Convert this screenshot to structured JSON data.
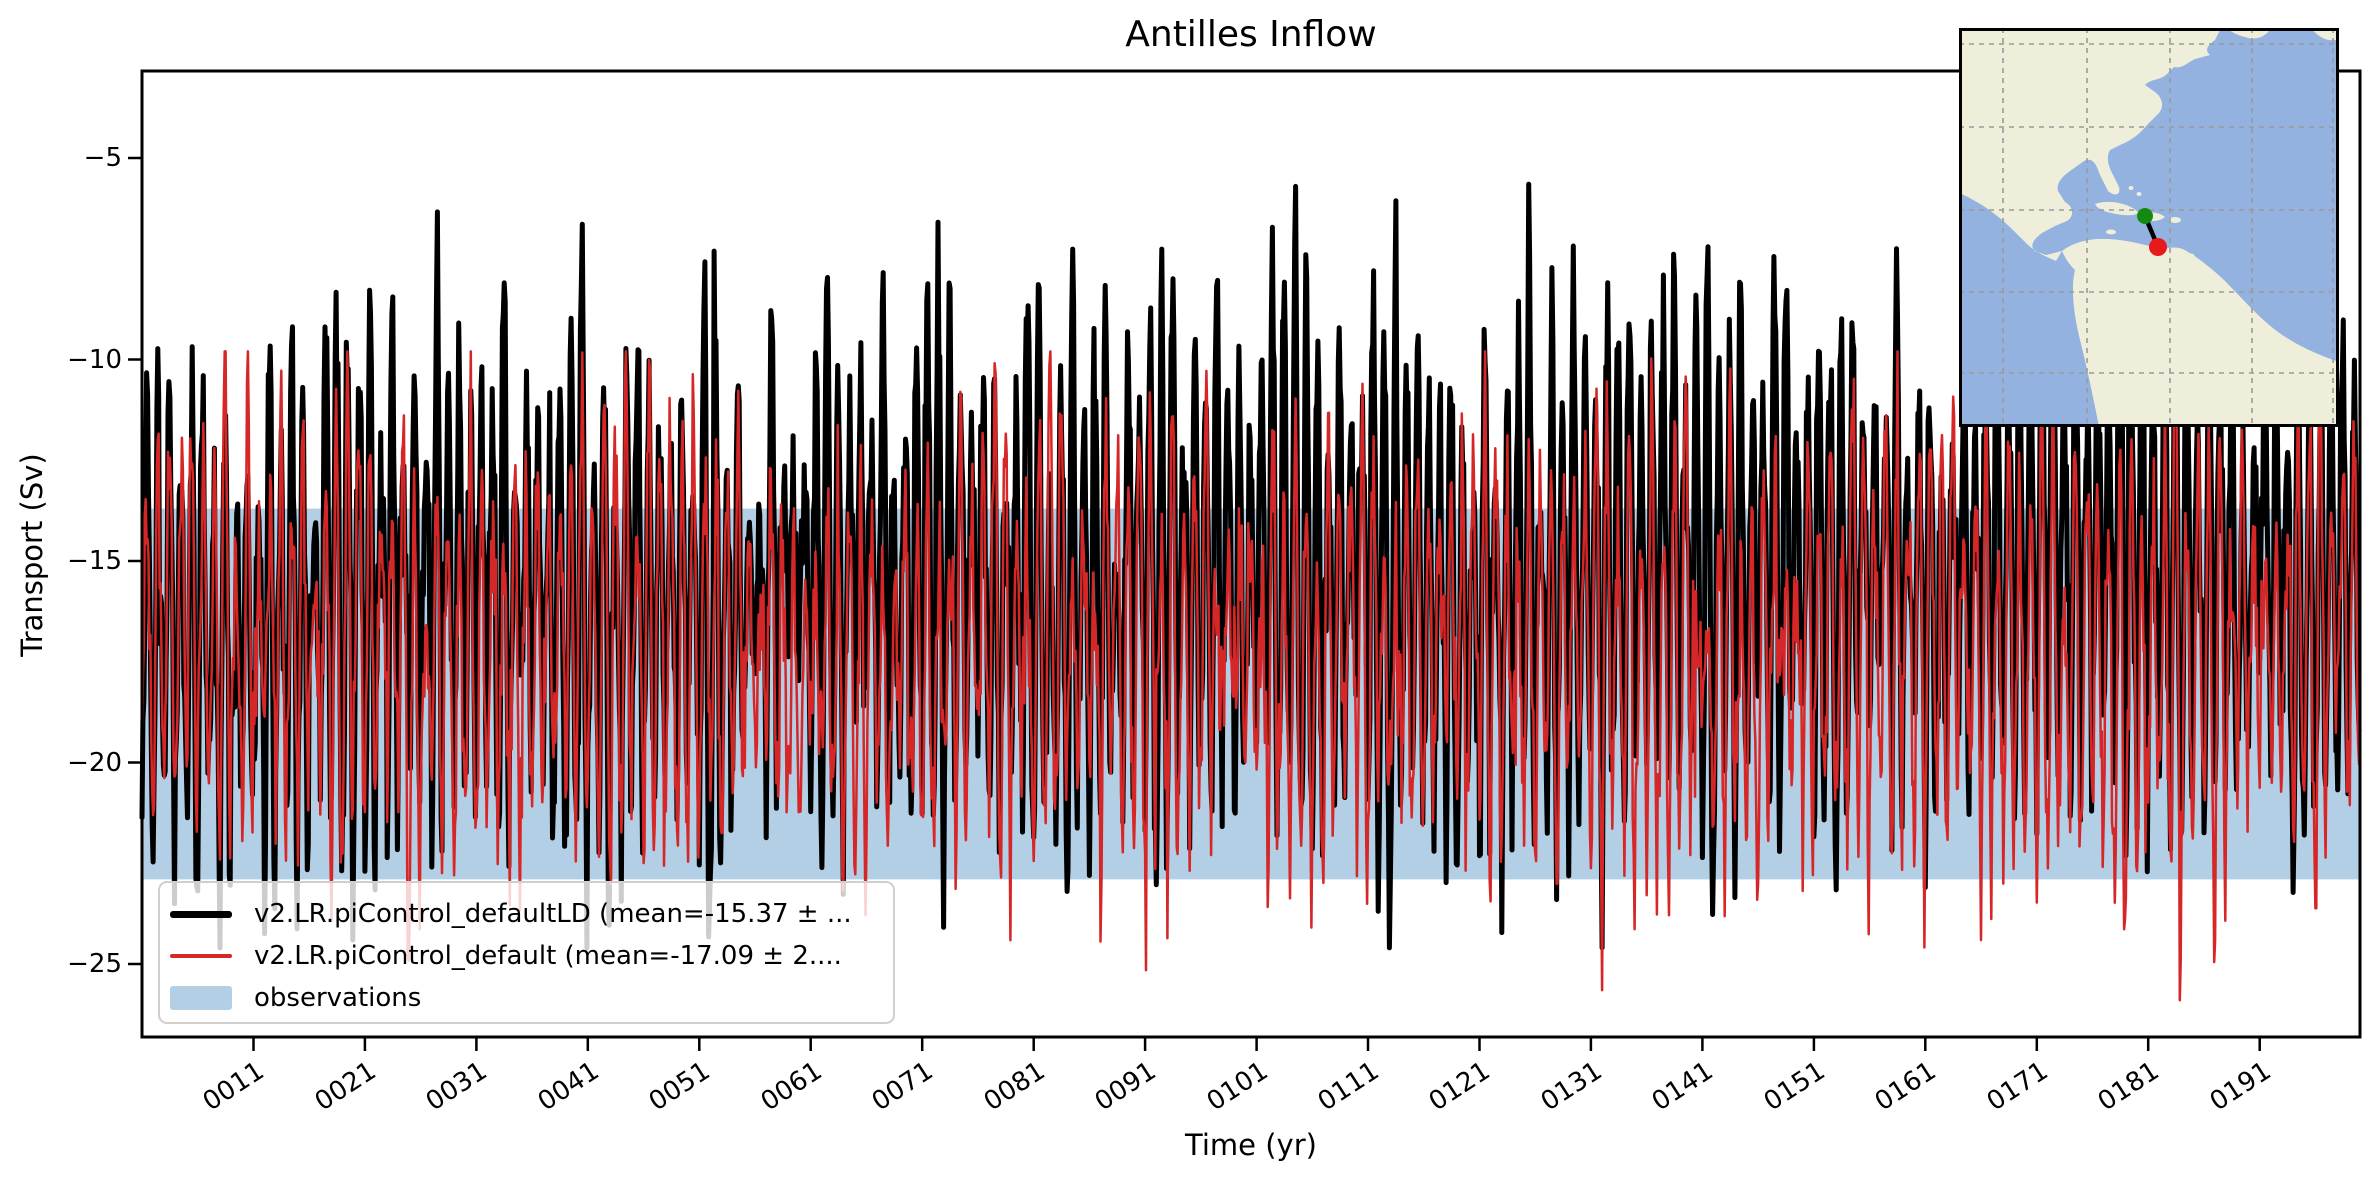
{
  "figure": {
    "background": "#ffffff"
  },
  "chart_data": {
    "type": "line",
    "title": "Antilles Inflow",
    "xlabel": "Time (yr)",
    "ylabel": "Transport (Sv)",
    "xlim": [
      1,
      200
    ],
    "ylim": [
      -26.8,
      -2.8
    ],
    "x_tick_years": [
      11,
      21,
      31,
      41,
      51,
      61,
      71,
      81,
      91,
      101,
      111,
      121,
      131,
      141,
      151,
      161,
      171,
      181,
      191
    ],
    "x_tick_labels": [
      "0011",
      "0021",
      "0031",
      "0041",
      "0051",
      "0061",
      "0071",
      "0081",
      "0091",
      "0101",
      "0111",
      "0121",
      "0131",
      "0141",
      "0151",
      "0161",
      "0171",
      "0181",
      "0191"
    ],
    "y_ticks": [
      -5,
      -10,
      -15,
      -20,
      -25
    ],
    "y_tick_labels": [
      "−5",
      "−10",
      "−15",
      "−20",
      "−25"
    ],
    "band": {
      "label": "observations",
      "value_top": -13.7,
      "value_bottom": -22.9,
      "color": "#b3cfe5"
    },
    "series": [
      {
        "name": "v2.LR.piControl_defaultLD",
        "legend_label": "v2.LR.piControl_defaultLD (mean=-15.37 ± ...",
        "color": "#000000",
        "linewidth": 5,
        "mean": -15.37,
        "approx_max": -4.0,
        "approx_min": -24.6,
        "seasonal_amplitude": 4.8,
        "noise_sd": 1.25,
        "trend_total": 1.2,
        "points_per_year": 12,
        "years": [
          1,
          200
        ],
        "seed": 11
      },
      {
        "name": "v2.LR.piControl_default",
        "legend_label": "v2.LR.piControl_default (mean=-17.09 ± 2....",
        "color": "#d62728",
        "linewidth": 2.5,
        "mean": -17.09,
        "approx_max": -9.8,
        "approx_min": -25.9,
        "seasonal_amplitude": 4.1,
        "noise_sd": 1.15,
        "trend_total": 0,
        "points_per_year": 12,
        "years": [
          1,
          200
        ],
        "seed": 4
      }
    ]
  },
  "legend": {
    "items": [
      {
        "swatch": "thick-black-line",
        "label": "v2.LR.piControl_defaultLD (mean=-15.37 ± ..."
      },
      {
        "swatch": "thin-red-line",
        "label": "v2.LR.piControl_default (mean=-17.09 ± 2...."
      },
      {
        "swatch": "blue-patch",
        "label": "observations"
      }
    ]
  },
  "inset_map": {
    "region": "Caribbean / Americas",
    "ocean_color": "#94b2df",
    "land_color": "#efeedb",
    "grid_color": "#9a9a9a",
    "border_color": "#000000",
    "section_line_color": "#000000",
    "markers": [
      {
        "name": "section-north-endpoint",
        "color": "#128a12",
        "x": 186,
        "y": 188
      },
      {
        "name": "section-south-endpoint",
        "color": "#e8191c",
        "x": 199,
        "y": 219
      }
    ]
  }
}
